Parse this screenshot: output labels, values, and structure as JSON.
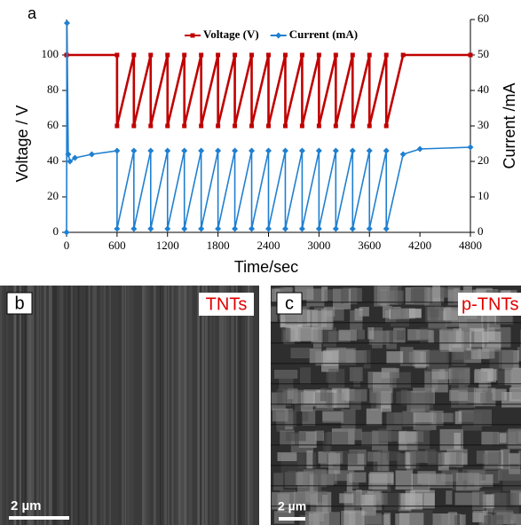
{
  "chart_data": {
    "type": "line",
    "panel_label": "a",
    "xlabel": "Time/sec",
    "ylabel": "Voltage / V",
    "y2label": "Current /mA",
    "xlim": [
      0,
      4800
    ],
    "xticks": [
      0,
      600,
      1200,
      1800,
      2400,
      3000,
      3600,
      4200,
      4800
    ],
    "ylim": [
      0,
      120
    ],
    "yticks": [
      0,
      20,
      40,
      60,
      80,
      100
    ],
    "y2lim": [
      0,
      60
    ],
    "y2ticks": [
      0,
      10,
      20,
      30,
      40,
      50,
      60
    ],
    "legend": "top",
    "series": [
      {
        "name": "Voltage (V)",
        "color": "#c00000",
        "marker": "square",
        "x": [
          0,
          600,
          600,
          800,
          800,
          1000,
          1000,
          1200,
          1200,
          1400,
          1400,
          1600,
          1600,
          1800,
          1800,
          2000,
          2000,
          2200,
          2200,
          2400,
          2400,
          2600,
          2600,
          2800,
          2800,
          3000,
          3000,
          3200,
          3200,
          3400,
          3400,
          3600,
          3600,
          3800,
          3800,
          4000,
          4800
        ],
        "values": [
          100,
          100,
          60,
          100,
          60,
          100,
          60,
          100,
          60,
          100,
          60,
          100,
          60,
          100,
          60,
          100,
          60,
          100,
          60,
          100,
          60,
          100,
          60,
          100,
          60,
          100,
          60,
          100,
          60,
          100,
          60,
          100,
          60,
          100,
          60,
          100,
          100
        ]
      },
      {
        "name": "Current (mA)",
        "color": "#1f7fd0",
        "marker": "diamond",
        "axis": "y2",
        "x": [
          0,
          5,
          20,
          40,
          100,
          300,
          600,
          600,
          800,
          800,
          1000,
          1000,
          1200,
          1200,
          1400,
          1400,
          1600,
          1600,
          1800,
          1800,
          2000,
          2000,
          2200,
          2200,
          2400,
          2400,
          2600,
          2600,
          2800,
          2800,
          3000,
          3000,
          3200,
          3200,
          3400,
          3400,
          3600,
          3600,
          3800,
          3800,
          4000,
          4200,
          4800
        ],
        "values": [
          0,
          59,
          22,
          20,
          21,
          22,
          23,
          1,
          23,
          1,
          23,
          1,
          23,
          1,
          23,
          1,
          23,
          1,
          23,
          1,
          23,
          1,
          23,
          1,
          23,
          1,
          23,
          1,
          23,
          1,
          23,
          1,
          23,
          1,
          23,
          1,
          23,
          1,
          23,
          1,
          22,
          23.5,
          24
        ]
      }
    ]
  },
  "panels": [
    {
      "label": "b",
      "tag": "TNTs",
      "scale_bar": "2 µm"
    },
    {
      "label": "c",
      "tag": "p-TNTs",
      "scale_bar": "2 µm"
    }
  ]
}
